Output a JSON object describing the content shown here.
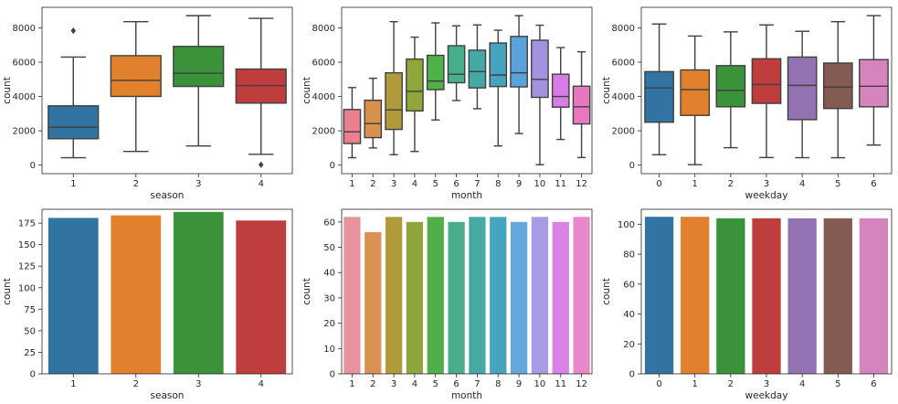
{
  "figure": {
    "charts": [
      {
        "id": "box-season"
      },
      {
        "id": "box-month"
      },
      {
        "id": "box-weekday"
      },
      {
        "id": "count-season"
      },
      {
        "id": "count-month"
      },
      {
        "id": "count-weekday"
      }
    ]
  },
  "chart_data": [
    {
      "type": "box",
      "xlabel": "season",
      "ylabel": "count",
      "ylim": [
        -500,
        9200
      ],
      "yticks": [
        0,
        2000,
        4000,
        6000,
        8000
      ],
      "categories": [
        "1",
        "2",
        "3",
        "4"
      ],
      "colors": [
        "#3274a1",
        "#e1812c",
        "#3a923a",
        "#c03d3e"
      ],
      "boxes": [
        {
          "whisker_low": 431,
          "q1": 1538,
          "median": 2209,
          "q3": 3456,
          "whisker_high": 6300,
          "outliers": [
            7836
          ]
        },
        {
          "whisker_low": 795,
          "q1": 4004,
          "median": 4942,
          "q3": 6380,
          "whisker_high": 8362,
          "outliers": []
        },
        {
          "whisker_low": 1115,
          "q1": 4586,
          "median": 5353,
          "q3": 6920,
          "whisker_high": 8714,
          "outliers": []
        },
        {
          "whisker_low": 627,
          "q1": 3616,
          "median": 4634,
          "q3": 5600,
          "whisker_high": 8555,
          "outliers": [
            22
          ]
        }
      ],
      "grid": false
    },
    {
      "type": "box",
      "xlabel": "month",
      "ylabel": "count",
      "ylim": [
        -500,
        9200
      ],
      "yticks": [
        0,
        2000,
        4000,
        6000,
        8000
      ],
      "categories": [
        "1",
        "2",
        "3",
        "4",
        "5",
        "6",
        "7",
        "8",
        "9",
        "10",
        "11",
        "12"
      ],
      "colors": [
        "#e8808f",
        "#d8904f",
        "#b09a3a",
        "#8ea63a",
        "#4fb149",
        "#45ae8b",
        "#44a8a4",
        "#45a3bd",
        "#5aa2da",
        "#a292e0",
        "#d77ce4",
        "#e778c0"
      ],
      "boxes": [
        {
          "whisker_low": 431,
          "q1": 1260,
          "median": 1940,
          "q3": 3240,
          "whisker_high": 4520,
          "outliers": []
        },
        {
          "whisker_low": 1000,
          "q1": 1600,
          "median": 2420,
          "q3": 3780,
          "whisker_high": 5060,
          "outliers": []
        },
        {
          "whisker_low": 605,
          "q1": 2080,
          "median": 3220,
          "q3": 5380,
          "whisker_high": 8362,
          "outliers": []
        },
        {
          "whisker_low": 795,
          "q1": 3160,
          "median": 4300,
          "q3": 6180,
          "whisker_high": 7460,
          "outliers": []
        },
        {
          "whisker_low": 2633,
          "q1": 4400,
          "median": 4900,
          "q3": 6400,
          "whisker_high": 8294,
          "outliers": []
        },
        {
          "whisker_low": 3767,
          "q1": 4800,
          "median": 5300,
          "q3": 6960,
          "whisker_high": 8120,
          "outliers": []
        },
        {
          "whisker_low": 3285,
          "q1": 4500,
          "median": 5450,
          "q3": 6700,
          "whisker_high": 8173,
          "outliers": []
        },
        {
          "whisker_low": 1115,
          "q1": 4580,
          "median": 5250,
          "q3": 7120,
          "whisker_high": 7865,
          "outliers": []
        },
        {
          "whisker_low": 1842,
          "q1": 4560,
          "median": 5380,
          "q3": 7500,
          "whisker_high": 8714,
          "outliers": []
        },
        {
          "whisker_low": 22,
          "q1": 3950,
          "median": 5000,
          "q3": 7280,
          "whisker_high": 8156,
          "outliers": []
        },
        {
          "whisker_low": 1495,
          "q1": 3380,
          "median": 4000,
          "q3": 5300,
          "whisker_high": 6852,
          "outliers": []
        },
        {
          "whisker_low": 441,
          "q1": 2400,
          "median": 3400,
          "q3": 4600,
          "whisker_high": 6606,
          "outliers": []
        }
      ],
      "grid": false
    },
    {
      "type": "box",
      "xlabel": "weekday",
      "ylabel": "count",
      "ylim": [
        -500,
        9200
      ],
      "yticks": [
        0,
        2000,
        4000,
        6000,
        8000
      ],
      "categories": [
        "0",
        "1",
        "2",
        "3",
        "4",
        "5",
        "6"
      ],
      "colors": [
        "#3274a1",
        "#e1812c",
        "#3a923a",
        "#c03d3e",
        "#9372b2",
        "#845b53",
        "#d684bd"
      ],
      "boxes": [
        {
          "whisker_low": 605,
          "q1": 2500,
          "median": 4500,
          "q3": 5450,
          "whisker_high": 8227,
          "outliers": []
        },
        {
          "whisker_low": 22,
          "q1": 2900,
          "median": 4400,
          "q3": 5550,
          "whisker_high": 7525,
          "outliers": []
        },
        {
          "whisker_low": 1013,
          "q1": 3400,
          "median": 4350,
          "q3": 5800,
          "whisker_high": 7767,
          "outliers": []
        },
        {
          "whisker_low": 441,
          "q1": 3600,
          "median": 4700,
          "q3": 6200,
          "whisker_high": 8173,
          "outliers": []
        },
        {
          "whisker_low": 431,
          "q1": 2650,
          "median": 4650,
          "q3": 6300,
          "whisker_high": 7804,
          "outliers": []
        },
        {
          "whisker_low": 431,
          "q1": 3300,
          "median": 4550,
          "q3": 5950,
          "whisker_high": 8362,
          "outliers": []
        },
        {
          "whisker_low": 1167,
          "q1": 3400,
          "median": 4600,
          "q3": 6150,
          "whisker_high": 8714,
          "outliers": []
        }
      ],
      "grid": false
    },
    {
      "type": "bar",
      "xlabel": "season",
      "ylabel": "count",
      "ylim": [
        0,
        191
      ],
      "yticks": [
        0,
        25,
        50,
        75,
        100,
        125,
        150,
        175
      ],
      "categories": [
        "1",
        "2",
        "3",
        "4"
      ],
      "colors": [
        "#3274a1",
        "#e1812c",
        "#3a923a",
        "#c03d3e"
      ],
      "values": [
        181,
        184,
        188,
        178
      ],
      "grid": false
    },
    {
      "type": "bar",
      "xlabel": "month",
      "ylabel": "count",
      "ylim": [
        0,
        65
      ],
      "yticks": [
        0,
        10,
        20,
        30,
        40,
        50,
        60
      ],
      "categories": [
        "1",
        "2",
        "3",
        "4",
        "5",
        "6",
        "7",
        "8",
        "9",
        "10",
        "11",
        "12"
      ],
      "colors": [
        "#e8939f",
        "#dc9154",
        "#b09a3a",
        "#8fa43b",
        "#52ae49",
        "#48ad8b",
        "#45a9a4",
        "#46a4bd",
        "#62a8df",
        "#a99ae5",
        "#d882e6",
        "#e888c8"
      ],
      "values": [
        62,
        56,
        62,
        60,
        62,
        60,
        62,
        62,
        60,
        62,
        60,
        62
      ],
      "grid": false
    },
    {
      "type": "bar",
      "xlabel": "weekday",
      "ylabel": "count",
      "ylim": [
        0,
        110
      ],
      "yticks": [
        0,
        20,
        40,
        60,
        80,
        100
      ],
      "categories": [
        "0",
        "1",
        "2",
        "3",
        "4",
        "5",
        "6"
      ],
      "colors": [
        "#3274a1",
        "#e1812c",
        "#3a923a",
        "#c03d3e",
        "#9372b2",
        "#845b53",
        "#d684bd"
      ],
      "values": [
        105,
        105,
        104,
        104,
        104,
        104,
        104
      ],
      "grid": false
    }
  ]
}
